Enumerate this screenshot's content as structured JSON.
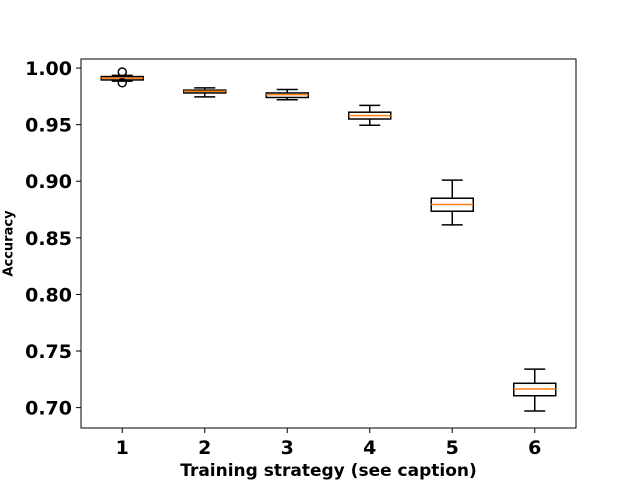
{
  "chart_data": {
    "type": "boxplot",
    "title": "",
    "xlabel": "Training strategy (see caption)",
    "ylabel": "Accuracy",
    "ylim": [
      0.682,
      1.008
    ],
    "xlim": [
      0.5,
      6.5
    ],
    "categories": [
      "1",
      "2",
      "3",
      "4",
      "5",
      "6"
    ],
    "y_ticks": [
      0.7,
      0.75,
      0.8,
      0.85,
      0.9,
      0.95,
      1.0
    ],
    "y_tick_labels": [
      "0.70",
      "0.75",
      "0.80",
      "0.85",
      "0.90",
      "0.95",
      "1.00"
    ],
    "grid": false,
    "legend": "none",
    "boxes": [
      {
        "category": "1",
        "whisker_low": 0.9885,
        "q1": 0.9895,
        "median": 0.991,
        "q3": 0.9925,
        "whisker_high": 0.9935,
        "fliers": [
          0.987,
          0.9965
        ]
      },
      {
        "category": "2",
        "whisker_low": 0.9745,
        "q1": 0.978,
        "median": 0.9795,
        "q3": 0.9805,
        "whisker_high": 0.9825,
        "fliers": []
      },
      {
        "category": "3",
        "whisker_low": 0.972,
        "q1": 0.974,
        "median": 0.9765,
        "q3": 0.978,
        "whisker_high": 0.981,
        "fliers": []
      },
      {
        "category": "4",
        "whisker_low": 0.9495,
        "q1": 0.955,
        "median": 0.958,
        "q3": 0.961,
        "whisker_high": 0.967,
        "fliers": []
      },
      {
        "category": "5",
        "whisker_low": 0.8615,
        "q1": 0.8735,
        "median": 0.8795,
        "q3": 0.885,
        "whisker_high": 0.901,
        "fliers": []
      },
      {
        "category": "6",
        "whisker_low": 0.697,
        "q1": 0.7105,
        "median": 0.7165,
        "q3": 0.7215,
        "whisker_high": 0.734,
        "fliers": []
      }
    ],
    "colors": {
      "box": "#000000",
      "median": "#ff7f0e",
      "axis": "#000000",
      "background": "#ffffff"
    }
  }
}
